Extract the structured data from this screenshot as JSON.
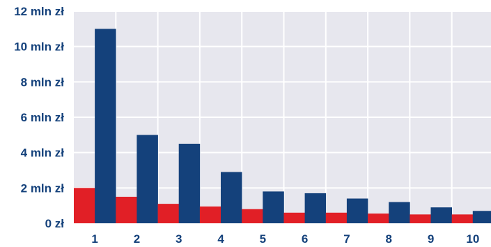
{
  "chart_data": {
    "type": "bar",
    "categories": [
      "1",
      "2",
      "3",
      "4",
      "5",
      "6",
      "7",
      "8",
      "9",
      "10"
    ],
    "series": [
      {
        "values": [
          2.0,
          1.5,
          1.1,
          0.95,
          0.8,
          0.6,
          0.6,
          0.55,
          0.5,
          0.5
        ],
        "color": "#e11f26"
      },
      {
        "values": [
          11.0,
          5.0,
          4.5,
          2.9,
          1.8,
          1.7,
          1.4,
          1.2,
          0.9,
          0.7
        ],
        "color": "#14417b"
      }
    ],
    "ylim": [
      0,
      12
    ],
    "y_ticks": [
      {
        "value": 0,
        "label": "0 zł"
      },
      {
        "value": 2,
        "label": "2 mln zł"
      },
      {
        "value": 4,
        "label": "4 mln zł"
      },
      {
        "value": 6,
        "label": "6 mln zł"
      },
      {
        "value": 8,
        "label": "8 mln zł"
      },
      {
        "value": 10,
        "label": "10 mln zł"
      },
      {
        "value": 12,
        "label": "12 mln zł"
      }
    ],
    "grid": true,
    "plot_background": "#e7e7ee",
    "grid_color": "#ffffff",
    "legend": "none"
  }
}
